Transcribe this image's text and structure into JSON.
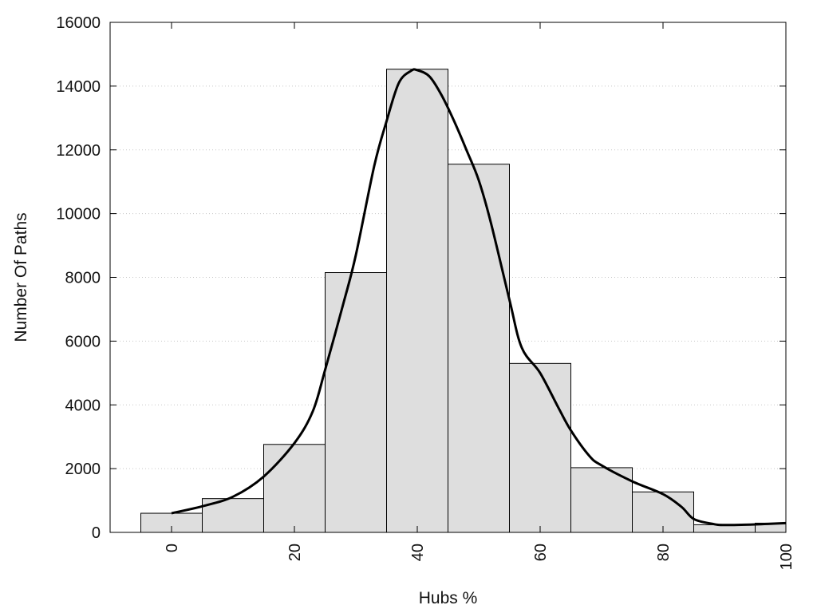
{
  "chart_data": {
    "type": "bar",
    "xlabel": "Hubs %",
    "ylabel": "Number Of Paths",
    "xlim": [
      -10,
      100
    ],
    "ylim": [
      0,
      16000
    ],
    "x_ticks": [
      0,
      20,
      40,
      60,
      80,
      100
    ],
    "y_ticks": [
      0,
      2000,
      4000,
      6000,
      8000,
      10000,
      12000,
      14000,
      16000
    ],
    "grid": "horizontal dotted",
    "bin_width": 10,
    "bins": [
      {
        "center": 0,
        "value": 600
      },
      {
        "center": 10,
        "value": 1060
      },
      {
        "center": 20,
        "value": 2760
      },
      {
        "center": 30,
        "value": 8150
      },
      {
        "center": 40,
        "value": 14530
      },
      {
        "center": 50,
        "value": 11550
      },
      {
        "center": 60,
        "value": 5300
      },
      {
        "center": 70,
        "value": 2030
      },
      {
        "center": 80,
        "value": 1270
      },
      {
        "center": 90,
        "value": 240
      },
      {
        "center": 100,
        "value": 290
      }
    ],
    "curve": {
      "x": [
        0,
        5,
        10,
        15,
        20,
        23,
        25,
        28,
        30,
        33,
        35,
        37,
        39,
        40,
        42,
        44,
        46,
        48,
        50,
        52,
        55,
        57,
        60,
        63,
        65,
        68,
        70,
        75,
        80,
        83,
        85,
        88,
        90,
        95,
        100
      ],
      "y": [
        600,
        820,
        1120,
        1750,
        2800,
        3800,
        5100,
        7200,
        8700,
        11500,
        12900,
        14100,
        14480,
        14500,
        14300,
        13700,
        12900,
        12000,
        11050,
        9700,
        7300,
        5800,
        5000,
        3900,
        3200,
        2400,
        2100,
        1600,
        1200,
        800,
        420,
        270,
        230,
        250,
        290
      ]
    },
    "colors": {
      "bar_fill": "#dedede",
      "bar_stroke": "#000000",
      "curve": "#000000",
      "grid": "#c8c8c8",
      "axis": "#000000",
      "text": "#111111"
    }
  }
}
